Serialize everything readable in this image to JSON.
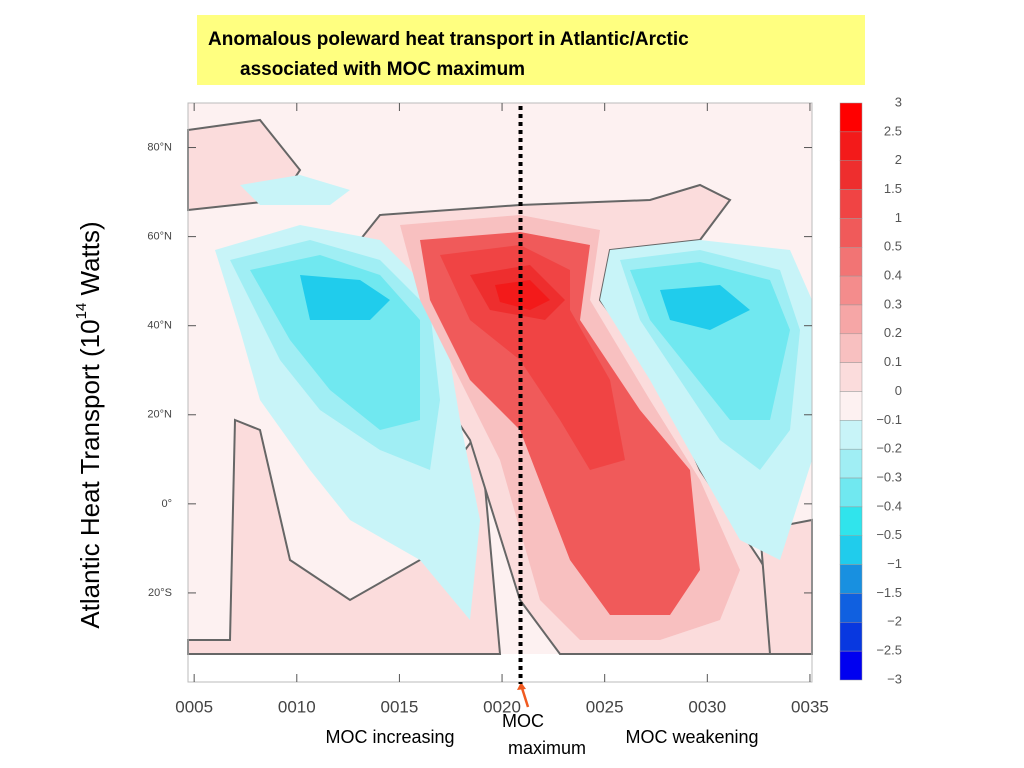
{
  "chart_data": {
    "type": "contour",
    "title": [
      "Anomalous poleward heat transport in Atlantic/Arctic",
      "associated with MOC maximum"
    ],
    "ylabel": [
      "Atlantic Heat Transport  (10",
      "14",
      " Watts)"
    ],
    "xlim": [
      4.7,
      35.1
    ],
    "xticks": [
      {
        "value": 5,
        "label": "0005"
      },
      {
        "value": 10,
        "label": "0010"
      },
      {
        "value": 15,
        "label": "0015"
      },
      {
        "value": 20,
        "label": "0020"
      },
      {
        "value": 25,
        "label": "0025"
      },
      {
        "value": 30,
        "label": "0030"
      },
      {
        "value": 35,
        "label": "0035"
      }
    ],
    "ylim": [
      -40,
      90
    ],
    "yticks": [
      {
        "value": -20,
        "label": "20°S"
      },
      {
        "value": 0,
        "label": "0°"
      },
      {
        "value": 20,
        "label": "20°N"
      },
      {
        "value": 40,
        "label": "40°N"
      },
      {
        "value": 60,
        "label": "60°N"
      },
      {
        "value": 80,
        "label": "80°N"
      }
    ],
    "levels": [
      3,
      2.5,
      2,
      1.5,
      1,
      0.5,
      0.4,
      0.3,
      0.2,
      0.1,
      0,
      {
        "value": -0.1,
        "label": "−0.1"
      },
      {
        "value": -0.2,
        "label": "−0.2"
      },
      {
        "value": -0.3,
        "label": "−0.3"
      },
      {
        "value": -0.4,
        "label": "−0.4"
      },
      {
        "value": -0.5,
        "label": "−0.5"
      },
      {
        "value": -1,
        "label": "−1"
      },
      {
        "value": -1.5,
        "label": "−1.5"
      },
      {
        "value": -2,
        "label": "−2"
      },
      {
        "value": -2.5,
        "label": "−2.5"
      },
      {
        "value": -3,
        "label": "−3"
      }
    ],
    "colors": [
      "#ff0000",
      "#f31a1a",
      "#ee2e2e",
      "#f04444",
      "#f05a5a",
      "#f27474",
      "#f48c8c",
      "#f6a6a6",
      "#f8c0c0",
      "#fbdcdc",
      "#fdf1f1",
      "#c8f4f8",
      "#a0eef4",
      "#70e8f0",
      "#30e4ec",
      "#20ccec",
      "#1890e0",
      "#1060e0",
      "#0838e0",
      "#0000f0"
    ],
    "marker_x": 20.9,
    "annotations": [
      "MOC increasing",
      "MOC",
      "maximum",
      "MOC weakening"
    ]
  }
}
